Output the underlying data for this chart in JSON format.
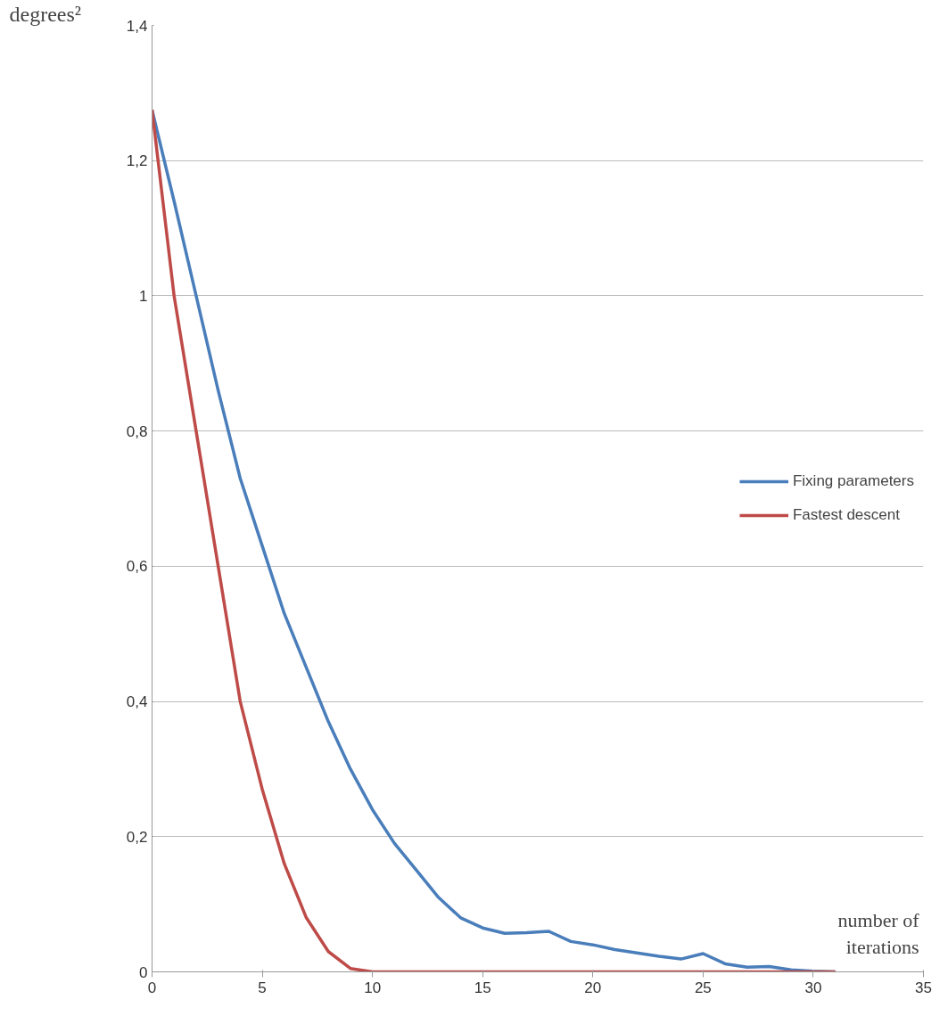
{
  "chart_data": {
    "type": "line",
    "xlabel": "number of\niterations",
    "ylabel": "degrees²",
    "xlim": [
      0,
      35
    ],
    "xticks": [
      0,
      5,
      10,
      15,
      20,
      25,
      30,
      35
    ],
    "ylim": [
      0,
      1.4
    ],
    "yticks": [
      0,
      {
        "value": 0.2,
        "label": "0,2"
      },
      {
        "value": 0.4,
        "label": "0,4"
      },
      {
        "value": 0.6,
        "label": "0,6"
      },
      {
        "value": 0.8,
        "label": "0,8"
      },
      1,
      {
        "value": 1.2,
        "label": "1,2"
      },
      {
        "value": 1.4,
        "label": "1,4"
      }
    ],
    "grid": "y",
    "legend": "right",
    "marker": "none",
    "line_style": "solid",
    "series": [
      {
        "name": "Fixing parameters",
        "color": "#4a7ebb",
        "x": [
          0,
          1,
          2,
          3,
          4,
          5,
          6,
          7,
          8,
          9,
          10,
          11,
          12,
          13,
          14,
          15,
          16,
          17,
          18,
          19,
          20,
          21,
          22,
          23,
          24,
          25,
          26,
          27,
          28,
          29,
          30,
          31
        ],
        "values": [
          1.275,
          1.14,
          1.0,
          0.86,
          0.73,
          0.63,
          0.53,
          0.45,
          0.37,
          0.3,
          0.24,
          0.19,
          0.15,
          0.11,
          0.08,
          0.065,
          0.057,
          0.058,
          0.06,
          0.045,
          0.04,
          0.033,
          0.028,
          0.023,
          0.019,
          0.027,
          0.012,
          0.007,
          0.008,
          0.003,
          0.001,
          0
        ]
      },
      {
        "name": "Fastest descent",
        "color": "#be4b48",
        "x": [
          0,
          1,
          2,
          3,
          4,
          5,
          6,
          7,
          8,
          9,
          10,
          31
        ],
        "values": [
          1.275,
          1.0,
          0.8,
          0.6,
          0.4,
          0.27,
          0.16,
          0.08,
          0.03,
          0.005,
          0,
          0
        ]
      }
    ]
  }
}
